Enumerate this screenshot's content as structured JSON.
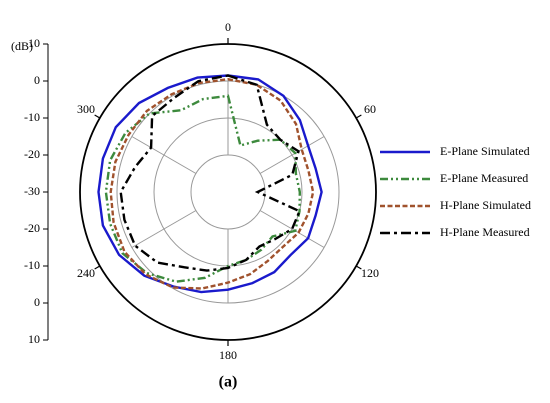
{
  "chart_data": {
    "type": "polar",
    "radial_unit": "(dB)",
    "caption": "(a)",
    "theta": [
      0,
      15,
      30,
      45,
      60,
      75,
      90,
      105,
      120,
      135,
      150,
      165,
      180,
      195,
      210,
      225,
      240,
      255,
      270,
      285,
      300,
      315,
      330,
      345
    ],
    "rlim": [
      -30,
      10
    ],
    "rticks": [
      -30,
      -20,
      -10,
      0,
      10
    ],
    "thetaticks": [
      0,
      60,
      120,
      180,
      240,
      300
    ],
    "grid": true,
    "legend": "right",
    "series": [
      {
        "name": "E-Plane Simulated",
        "color": "#1a1acc",
        "dash": "solid",
        "values": [
          1.5,
          1.5,
          0,
          -2.5,
          -5,
          -5.5,
          -4.7,
          -5.5,
          -5,
          -6,
          -5,
          -4.5,
          -3.6,
          -2,
          -0.5,
          2,
          4,
          5,
          5,
          5,
          5,
          4,
          2.5,
          2
        ]
      },
      {
        "name": "E-Plane Measured",
        "color": "#3d8a3d",
        "dash": "dash-dot-dot",
        "values": [
          -4,
          -17,
          -14,
          -10,
          -9,
          -11,
          -10.6,
          -10,
          -9,
          -13,
          -12,
          -11,
          -10,
          -6,
          -2,
          1,
          3,
          3,
          3,
          3,
          2,
          0,
          -4.5,
          -4
        ]
      },
      {
        "name": "H-Plane Simulated",
        "color": "#a0522d",
        "dash": "dashed",
        "values": [
          0.5,
          0,
          -1.5,
          -4,
          -7,
          -7.5,
          -7,
          -7.5,
          -8,
          -9,
          -8.5,
          -7,
          -5.5,
          -3,
          -0.2,
          1.5,
          2.3,
          2,
          1.7,
          1.5,
          1,
          1,
          0.5,
          0.5
        ]
      },
      {
        "name": "H-Plane Measured",
        "color": "#000000",
        "dash": "dash-dot",
        "values": [
          1.5,
          0,
          -9,
          -10,
          -8,
          -12,
          -22,
          -10,
          -10,
          -12,
          -13,
          -11,
          -9.5,
          -8,
          -6.5,
          -3,
          -1,
          -1,
          -1,
          -4,
          -6,
          -1,
          -0.7,
          1
        ]
      }
    ]
  }
}
